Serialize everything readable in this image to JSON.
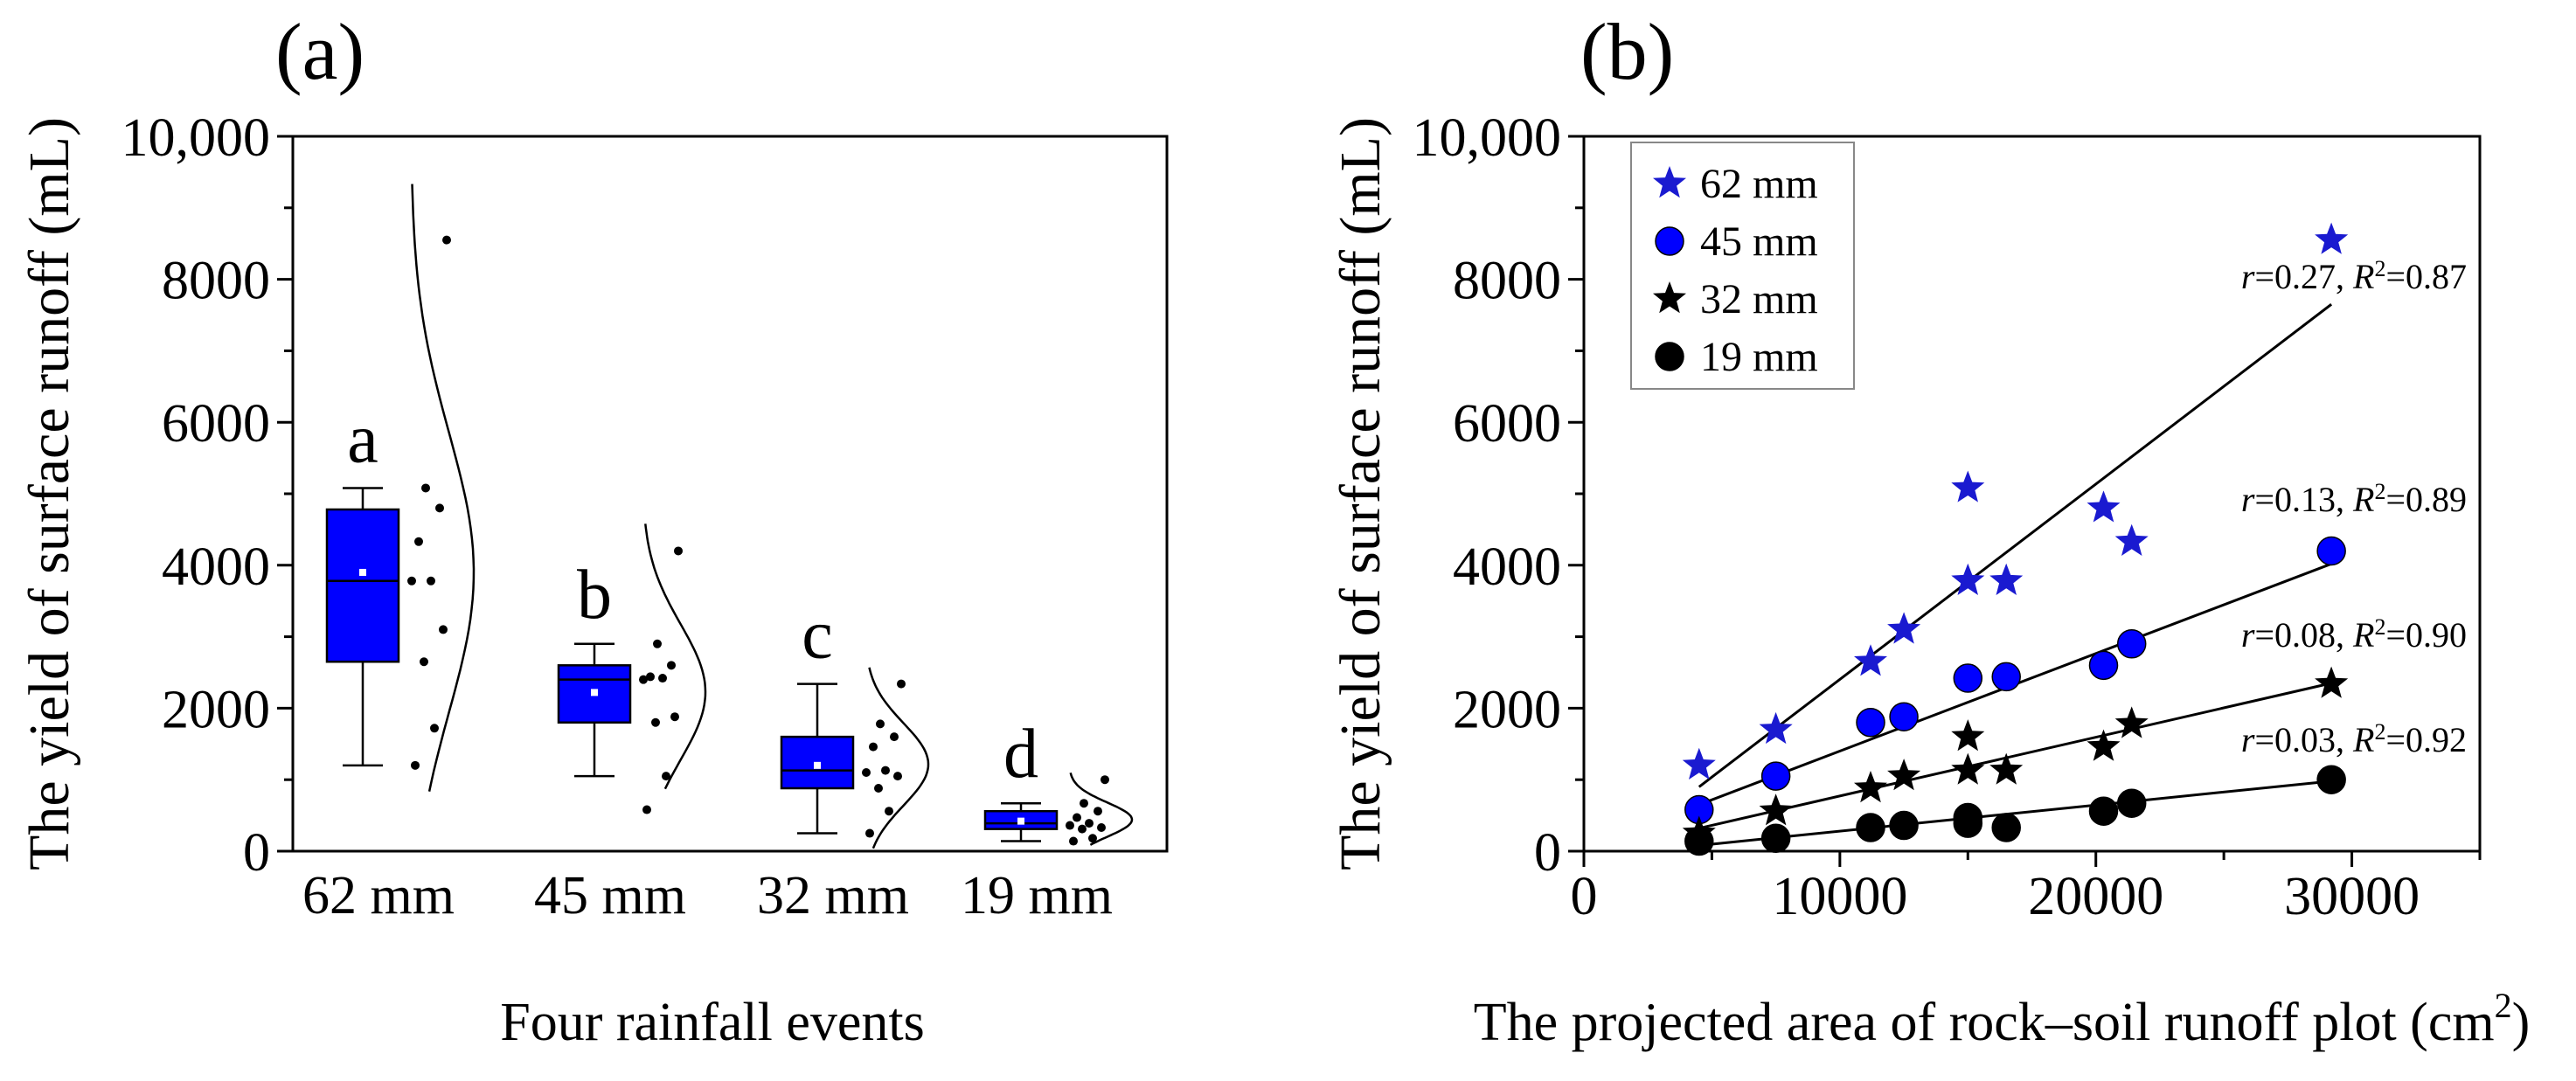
{
  "colors": {
    "box_fill": "#0000ff",
    "star_fill": "#1a1ad0",
    "circle_fill": "#0000ff",
    "black": "#000000"
  },
  "chart_data": [
    {
      "panel_label": "(a)",
      "type": "box",
      "xlabel": "Four rainfall events",
      "ylabel": "The yield of surface runoff (mL)",
      "ylim": [
        0,
        10000
      ],
      "y_ticks": [
        "0",
        "2000",
        "4000",
        "6000",
        "8000",
        "10,000"
      ],
      "categories": [
        "62 mm",
        "45 mm",
        "32 mm",
        "19 mm"
      ],
      "groups": [
        {
          "name": "62 mm",
          "letter": "a",
          "whisker_low": 1200,
          "q1": 2650,
          "median": 3780,
          "mean": 3900,
          "q3": 4780,
          "whisker_high": 5080,
          "points": [
            8550,
            5080,
            4800,
            4330,
            3780,
            3780,
            3100,
            2650,
            1720,
            1200
          ]
        },
        {
          "name": "45 mm",
          "letter": "b",
          "whisker_low": 1050,
          "q1": 1800,
          "median": 2400,
          "mean": 2220,
          "q3": 2600,
          "whisker_high": 2900,
          "points": [
            4200,
            2900,
            2600,
            2440,
            2420,
            2400,
            1880,
            1800,
            1050,
            580
          ]
        },
        {
          "name": "32 mm",
          "letter": "c",
          "whisker_low": 250,
          "q1": 880,
          "median": 1130,
          "mean": 1200,
          "q3": 1600,
          "whisker_high": 2340,
          "points": [
            2340,
            1780,
            1600,
            1460,
            1130,
            1100,
            1050,
            880,
            560,
            250
          ]
        },
        {
          "name": "19 mm",
          "letter": "d",
          "whisker_low": 140,
          "q1": 310,
          "median": 390,
          "mean": 420,
          "q3": 560,
          "whisker_high": 670,
          "points": [
            1000,
            670,
            560,
            470,
            390,
            360,
            330,
            310,
            180,
            140
          ]
        }
      ]
    },
    {
      "panel_label": "(b)",
      "type": "scatter",
      "xlabel": "The projected area of rock–soil runoff plot (cm",
      "xlabel_sup": "2",
      "xlabel_end": ")",
      "ylabel": "The yield of surface runoff (mL)",
      "xlim": [
        0,
        35000
      ],
      "ylim": [
        0,
        10000
      ],
      "x_ticks": [
        "0",
        "10000",
        "20000",
        "30000"
      ],
      "y_ticks": [
        "0",
        "2000",
        "4000",
        "6000",
        "8000",
        "10,000"
      ],
      "legend_position": "top-left",
      "series": [
        {
          "name": "62 mm",
          "marker": "star",
          "color": "#1a1ad0",
          "x": [
            4500,
            7500,
            11200,
            12500,
            15000,
            15000,
            16500,
            20300,
            21400,
            29200
          ],
          "y": [
            1200,
            1700,
            2650,
            3100,
            3780,
            5080,
            3780,
            4800,
            4330,
            8550
          ],
          "fit": {
            "x": [
              4500,
              29200
            ],
            "y": [
              900,
              7650
            ]
          },
          "stats_r": "0.27",
          "stats_r2": "0.87"
        },
        {
          "name": "45 mm",
          "marker": "circle",
          "color": "#0000ff",
          "x": [
            4500,
            7500,
            11200,
            12500,
            15000,
            16500,
            20300,
            21400,
            29200
          ],
          "y": [
            580,
            1050,
            1800,
            1880,
            2420,
            2440,
            2600,
            2900,
            4200
          ],
          "fit": {
            "x": [
              4500,
              29200
            ],
            "y": [
              650,
              4020
            ]
          },
          "stats_r": "0.13",
          "stats_r2": "0.89"
        },
        {
          "name": "32 mm",
          "marker": "star",
          "color": "#000000",
          "x": [
            4500,
            7500,
            11200,
            12500,
            15000,
            15000,
            16500,
            20300,
            21400,
            29200
          ],
          "y": [
            250,
            560,
            880,
            1050,
            1130,
            1600,
            1130,
            1460,
            1780,
            2340
          ],
          "fit": {
            "x": [
              4500,
              29200
            ],
            "y": [
              320,
              2350
            ]
          },
          "stats_r": "0.08",
          "stats_r2": "0.90"
        },
        {
          "name": "19 mm",
          "marker": "circle",
          "color": "#000000",
          "x": [
            4500,
            7500,
            11200,
            12500,
            15000,
            15000,
            16500,
            20300,
            21400,
            29200
          ],
          "y": [
            140,
            180,
            330,
            360,
            390,
            470,
            330,
            560,
            670,
            1000
          ],
          "fit": {
            "x": [
              4500,
              29200
            ],
            "y": [
              80,
              980
            ]
          },
          "stats_r": "0.03",
          "stats_r2": "0.92"
        }
      ]
    }
  ]
}
